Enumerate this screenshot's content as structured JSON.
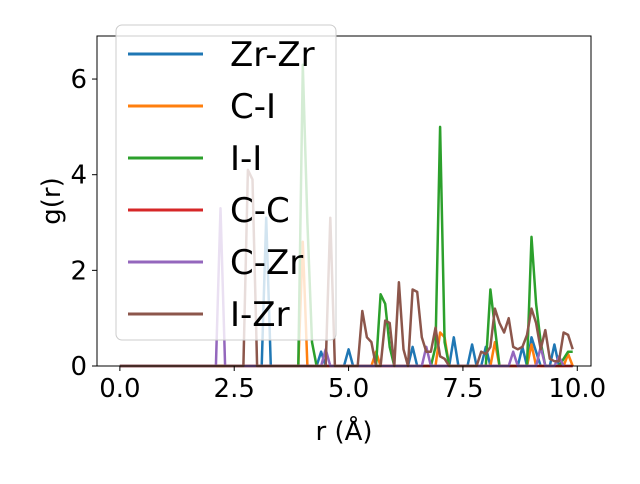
{
  "chart_data": {
    "type": "line",
    "xlabel": "r (Å)",
    "ylabel": "g(r)",
    "xlim": [
      -0.5,
      10.3
    ],
    "ylim": [
      0,
      6.9
    ],
    "xticks": [
      0.0,
      2.5,
      5.0,
      7.5,
      10.0
    ],
    "xtick_labels": [
      "0.0",
      "2.5",
      "5.0",
      "7.5",
      "10.0"
    ],
    "yticks": [
      0,
      2,
      4,
      6
    ],
    "ytick_labels": [
      "0",
      "2",
      "4",
      "6"
    ],
    "grid": false,
    "legend_position": "upper-left",
    "series": [
      {
        "name": "Zr-Zr",
        "color": "#1f77b4",
        "points": [
          [
            0,
            0
          ],
          [
            3.1,
            0
          ],
          [
            3.2,
            3.1
          ],
          [
            3.3,
            0
          ],
          [
            4.3,
            0
          ],
          [
            4.4,
            0.3
          ],
          [
            4.5,
            0
          ],
          [
            4.9,
            0
          ],
          [
            5.0,
            0.35
          ],
          [
            5.1,
            0
          ],
          [
            6.3,
            0
          ],
          [
            6.4,
            0.4
          ],
          [
            6.5,
            0
          ],
          [
            7.2,
            0
          ],
          [
            7.3,
            0.6
          ],
          [
            7.4,
            0
          ],
          [
            7.6,
            0
          ],
          [
            7.7,
            0.45
          ],
          [
            7.8,
            0
          ],
          [
            7.9,
            0
          ],
          [
            8.0,
            0.4
          ],
          [
            8.1,
            0
          ],
          [
            8.7,
            0
          ],
          [
            8.8,
            0.4
          ],
          [
            8.9,
            0
          ],
          [
            9.0,
            0.6
          ],
          [
            9.1,
            0.3
          ],
          [
            9.2,
            0
          ],
          [
            9.4,
            0
          ],
          [
            9.5,
            0.45
          ],
          [
            9.6,
            0
          ],
          [
            9.9,
            0
          ]
        ]
      },
      {
        "name": "C-I",
        "color": "#ff7f0e",
        "points": [
          [
            0,
            0
          ],
          [
            3.9,
            0
          ],
          [
            4.0,
            2.6
          ],
          [
            4.1,
            0
          ],
          [
            5.5,
            0
          ],
          [
            5.6,
            0.3
          ],
          [
            5.7,
            0
          ],
          [
            6.9,
            0
          ],
          [
            7.0,
            0.7
          ],
          [
            7.1,
            0.6
          ],
          [
            7.2,
            0
          ],
          [
            8.1,
            0
          ],
          [
            8.2,
            0.5
          ],
          [
            8.3,
            0
          ],
          [
            8.9,
            0
          ],
          [
            9.0,
            0.45
          ],
          [
            9.1,
            0
          ],
          [
            9.7,
            0
          ],
          [
            9.8,
            0.25
          ],
          [
            9.9,
            0
          ]
        ]
      },
      {
        "name": "I-I",
        "color": "#2ca02c",
        "points": [
          [
            0,
            0
          ],
          [
            3.9,
            0
          ],
          [
            4.0,
            6.3
          ],
          [
            4.1,
            3.0
          ],
          [
            4.2,
            0.5
          ],
          [
            4.3,
            0
          ],
          [
            5.6,
            0
          ],
          [
            5.7,
            1.5
          ],
          [
            5.8,
            1.3
          ],
          [
            5.9,
            0.4
          ],
          [
            6.0,
            0
          ],
          [
            6.8,
            0
          ],
          [
            6.9,
            0.4
          ],
          [
            7.0,
            5.0
          ],
          [
            7.1,
            0.5
          ],
          [
            7.2,
            0
          ],
          [
            8.0,
            0
          ],
          [
            8.1,
            1.6
          ],
          [
            8.2,
            0.8
          ],
          [
            8.3,
            0
          ],
          [
            8.9,
            0
          ],
          [
            9.0,
            2.7
          ],
          [
            9.1,
            1.3
          ],
          [
            9.2,
            0.5
          ],
          [
            9.3,
            0
          ],
          [
            9.6,
            0
          ],
          [
            9.7,
            0.15
          ],
          [
            9.8,
            0.3
          ],
          [
            9.9,
            0.3
          ]
        ]
      },
      {
        "name": "C-C",
        "color": "#d62728",
        "points": [
          [
            0,
            0
          ],
          [
            9.9,
            0
          ]
        ]
      },
      {
        "name": "C-Zr",
        "color": "#9467bd",
        "points": [
          [
            0,
            0
          ],
          [
            2.1,
            0
          ],
          [
            2.2,
            3.3
          ],
          [
            2.3,
            0
          ],
          [
            4.4,
            0
          ],
          [
            4.5,
            0.35
          ],
          [
            4.6,
            0
          ],
          [
            6.6,
            0
          ],
          [
            6.7,
            0.4
          ],
          [
            6.8,
            0
          ],
          [
            8.5,
            0
          ],
          [
            8.6,
            0.3
          ],
          [
            8.7,
            0
          ],
          [
            9.1,
            0
          ],
          [
            9.2,
            0.4
          ],
          [
            9.3,
            0
          ],
          [
            9.5,
            0
          ],
          [
            9.6,
            0.2
          ],
          [
            9.7,
            0
          ]
        ]
      },
      {
        "name": "I-Zr",
        "color": "#8c564b",
        "points": [
          [
            0,
            0
          ],
          [
            2.7,
            0
          ],
          [
            2.8,
            4.1
          ],
          [
            2.9,
            3.9
          ],
          [
            3.0,
            0
          ],
          [
            4.5,
            0
          ],
          [
            4.6,
            3.1
          ],
          [
            4.7,
            0
          ],
          [
            5.2,
            0
          ],
          [
            5.3,
            1.15
          ],
          [
            5.4,
            0.6
          ],
          [
            5.5,
            0.5
          ],
          [
            5.6,
            0
          ],
          [
            5.7,
            0
          ],
          [
            5.8,
            0.95
          ],
          [
            5.9,
            0.9
          ],
          [
            6.0,
            0
          ],
          [
            6.1,
            1.75
          ],
          [
            6.2,
            0.35
          ],
          [
            6.3,
            0
          ],
          [
            6.4,
            1.6
          ],
          [
            6.5,
            1.55
          ],
          [
            6.6,
            0.6
          ],
          [
            6.7,
            0.3
          ],
          [
            6.8,
            0.3
          ],
          [
            6.9,
            0.8
          ],
          [
            7.0,
            0.2
          ],
          [
            7.1,
            0.15
          ],
          [
            7.2,
            0
          ],
          [
            7.8,
            0
          ],
          [
            7.9,
            0.3
          ],
          [
            8.0,
            0.25
          ],
          [
            8.1,
            0.4
          ],
          [
            8.2,
            1.2
          ],
          [
            8.3,
            0.9
          ],
          [
            8.4,
            0.7
          ],
          [
            8.5,
            1.0
          ],
          [
            8.6,
            0.4
          ],
          [
            8.7,
            0.35
          ],
          [
            8.8,
            0.4
          ],
          [
            8.9,
            0.65
          ],
          [
            9.0,
            1.2
          ],
          [
            9.1,
            0.9
          ],
          [
            9.2,
            0.35
          ],
          [
            9.3,
            0.75
          ],
          [
            9.4,
            0.15
          ],
          [
            9.5,
            0.1
          ],
          [
            9.6,
            0.1
          ],
          [
            9.7,
            0.7
          ],
          [
            9.8,
            0.65
          ],
          [
            9.9,
            0.35
          ]
        ]
      }
    ]
  }
}
